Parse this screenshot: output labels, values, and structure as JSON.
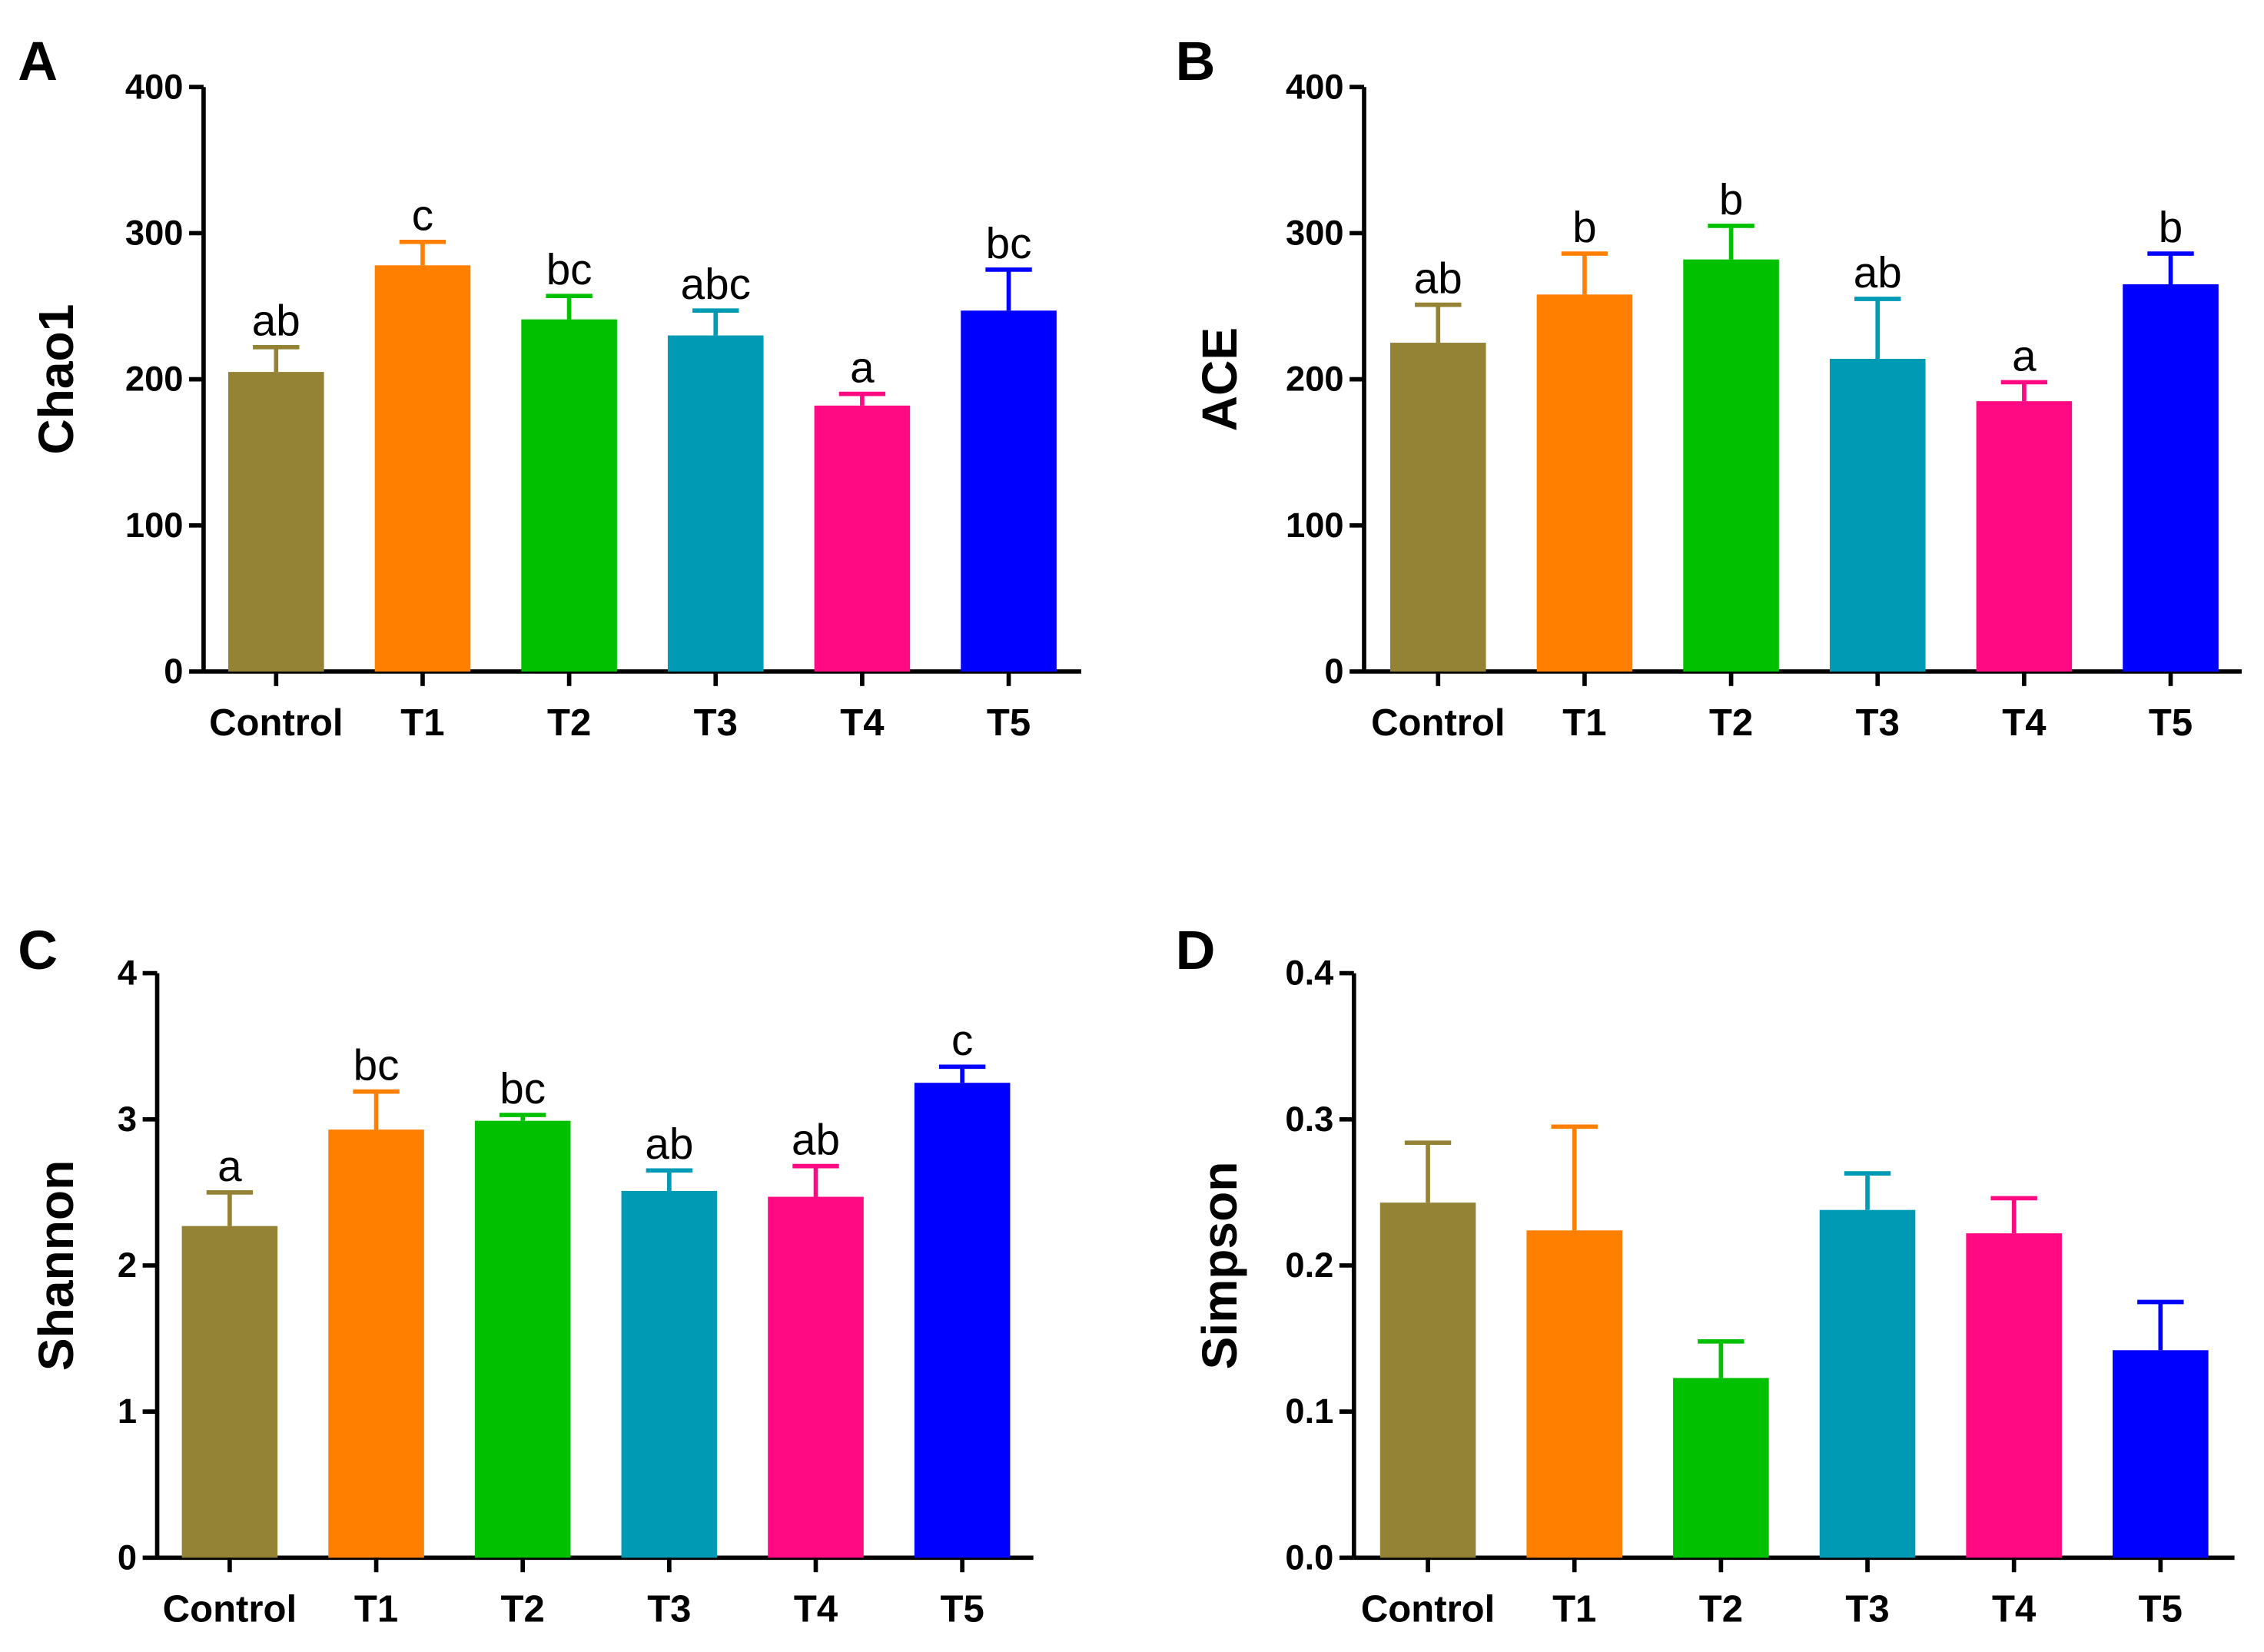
{
  "colors": {
    "Control": "#948235",
    "T1": "#FF8000",
    "T2": "#00C000",
    "T3": "#009AB4",
    "T4": "#FF0A82",
    "T5": "#0000FF"
  },
  "chart_data": [
    {
      "panel": "A",
      "type": "bar",
      "ylabel": "Chao1",
      "ylim": [
        0,
        400
      ],
      "yticks": [
        0,
        100,
        200,
        300,
        400
      ],
      "categories": [
        "Control",
        "T1",
        "T2",
        "T3",
        "T4",
        "T5"
      ],
      "values": [
        205,
        278,
        241,
        230,
        182,
        247
      ],
      "error_upper": [
        222,
        294,
        257,
        247,
        190,
        275
      ],
      "labels": [
        "ab",
        "c",
        "bc",
        "abc",
        "a",
        "bc"
      ]
    },
    {
      "panel": "B",
      "type": "bar",
      "ylabel": "ACE",
      "ylim": [
        0,
        400
      ],
      "yticks": [
        0,
        100,
        200,
        300,
        400
      ],
      "categories": [
        "Control",
        "T1",
        "T2",
        "T3",
        "T4",
        "T5"
      ],
      "values": [
        225,
        258,
        282,
        214,
        185,
        265
      ],
      "error_upper": [
        251,
        286,
        305,
        255,
        198,
        286
      ],
      "labels": [
        "ab",
        "b",
        "b",
        "ab",
        "a",
        "b"
      ]
    },
    {
      "panel": "C",
      "type": "bar",
      "ylabel": "Shannon",
      "ylim": [
        0,
        4
      ],
      "yticks": [
        0,
        1,
        2,
        3,
        4
      ],
      "categories": [
        "Control",
        "T1",
        "T2",
        "T3",
        "T4",
        "T5"
      ],
      "values": [
        2.27,
        2.93,
        2.99,
        2.51,
        2.47,
        3.25
      ],
      "error_upper": [
        2.5,
        3.19,
        3.03,
        2.65,
        2.68,
        3.36
      ],
      "labels": [
        "a",
        "bc",
        "bc",
        "ab",
        "ab",
        "c"
      ]
    },
    {
      "panel": "D",
      "type": "bar",
      "ylabel": "Simpson",
      "ylim": [
        0,
        0.4
      ],
      "yticks": [
        "0.0",
        "0.1",
        "0.2",
        "0.3",
        "0.4"
      ],
      "categories": [
        "Control",
        "T1",
        "T2",
        "T3",
        "T4",
        "T5"
      ],
      "values": [
        0.243,
        0.224,
        0.123,
        0.238,
        0.222,
        0.142
      ],
      "error_upper": [
        0.284,
        0.295,
        0.148,
        0.263,
        0.246,
        0.175
      ],
      "labels": [
        "",
        "",
        "",
        "",
        "",
        ""
      ]
    }
  ]
}
